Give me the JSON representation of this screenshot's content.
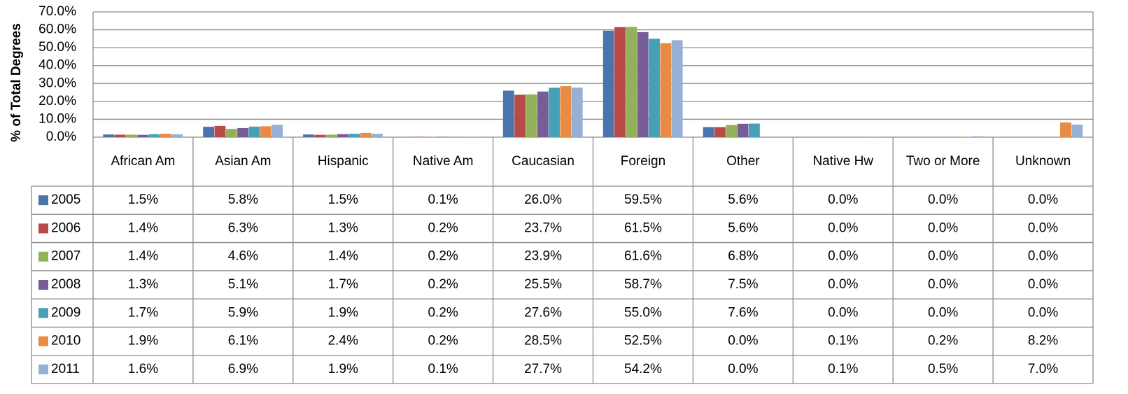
{
  "chart_data": {
    "type": "bar",
    "y_label": "% of Total Degrees",
    "categories": [
      "African Am",
      "Asian Am",
      "Hispanic",
      "Native Am",
      "Caucasian",
      "Foreign",
      "Other",
      "Native Hw",
      "Two or More",
      "Unknown"
    ],
    "series": [
      {
        "name": "2005",
        "color": "#4a74ab",
        "values": [
          1.5,
          5.8,
          1.5,
          0.1,
          26.0,
          59.5,
          5.6,
          0.0,
          0.0,
          0.0
        ],
        "value_labels": [
          "1.5%",
          "5.8%",
          "1.5%",
          "0.1%",
          "26.0%",
          "59.5%",
          "5.6%",
          "0.0%",
          "0.0%",
          "0.0%"
        ]
      },
      {
        "name": "2006",
        "color": "#b84a48",
        "values": [
          1.4,
          6.3,
          1.3,
          0.2,
          23.7,
          61.5,
          5.6,
          0.0,
          0.0,
          0.0
        ],
        "value_labels": [
          "1.4%",
          "6.3%",
          "1.3%",
          "0.2%",
          "23.7%",
          "61.5%",
          "5.6%",
          "0.0%",
          "0.0%",
          "0.0%"
        ]
      },
      {
        "name": "2007",
        "color": "#93b05a",
        "values": [
          1.4,
          4.6,
          1.4,
          0.2,
          23.9,
          61.6,
          6.8,
          0.0,
          0.0,
          0.0
        ],
        "value_labels": [
          "1.4%",
          "4.6%",
          "1.4%",
          "0.2%",
          "23.9%",
          "61.6%",
          "6.8%",
          "0.0%",
          "0.0%",
          "0.0%"
        ]
      },
      {
        "name": "2008",
        "color": "#775d98",
        "values": [
          1.3,
          5.1,
          1.7,
          0.2,
          25.5,
          58.7,
          7.5,
          0.0,
          0.0,
          0.0
        ],
        "value_labels": [
          "1.3%",
          "5.1%",
          "1.7%",
          "0.2%",
          "25.5%",
          "58.7%",
          "7.5%",
          "0.0%",
          "0.0%",
          "0.0%"
        ]
      },
      {
        "name": "2009",
        "color": "#46a1b8",
        "values": [
          1.7,
          5.9,
          1.9,
          0.2,
          27.6,
          55.0,
          7.6,
          0.0,
          0.0,
          0.0
        ],
        "value_labels": [
          "1.7%",
          "5.9%",
          "1.9%",
          "0.2%",
          "27.6%",
          "55.0%",
          "7.6%",
          "0.0%",
          "0.0%",
          "0.0%"
        ]
      },
      {
        "name": "2010",
        "color": "#e88b44",
        "values": [
          1.9,
          6.1,
          2.4,
          0.2,
          28.5,
          52.5,
          0.0,
          0.1,
          0.2,
          8.2
        ],
        "value_labels": [
          "1.9%",
          "6.1%",
          "2.4%",
          "0.2%",
          "28.5%",
          "52.5%",
          "0.0%",
          "0.1%",
          "0.2%",
          "8.2%"
        ]
      },
      {
        "name": "2011",
        "color": "#97b0d6",
        "values": [
          1.6,
          6.9,
          1.9,
          0.1,
          27.7,
          54.2,
          0.0,
          0.1,
          0.5,
          7.0
        ],
        "value_labels": [
          "1.6%",
          "6.9%",
          "1.9%",
          "0.1%",
          "27.7%",
          "54.2%",
          "0.0%",
          "0.1%",
          "0.5%",
          "7.0%"
        ]
      }
    ],
    "ylim": [
      0,
      70
    ],
    "yticks": [
      {
        "value": 0,
        "label": "0.0%"
      },
      {
        "value": 10,
        "label": "10.0%"
      },
      {
        "value": 20,
        "label": "20.0%"
      },
      {
        "value": 30,
        "label": "30.0%"
      },
      {
        "value": 40,
        "label": "40.0%"
      },
      {
        "value": 50,
        "label": "50.0%"
      },
      {
        "value": 60,
        "label": "60.0%"
      },
      {
        "value": 70,
        "label": "70.0%"
      }
    ],
    "grid": true
  }
}
